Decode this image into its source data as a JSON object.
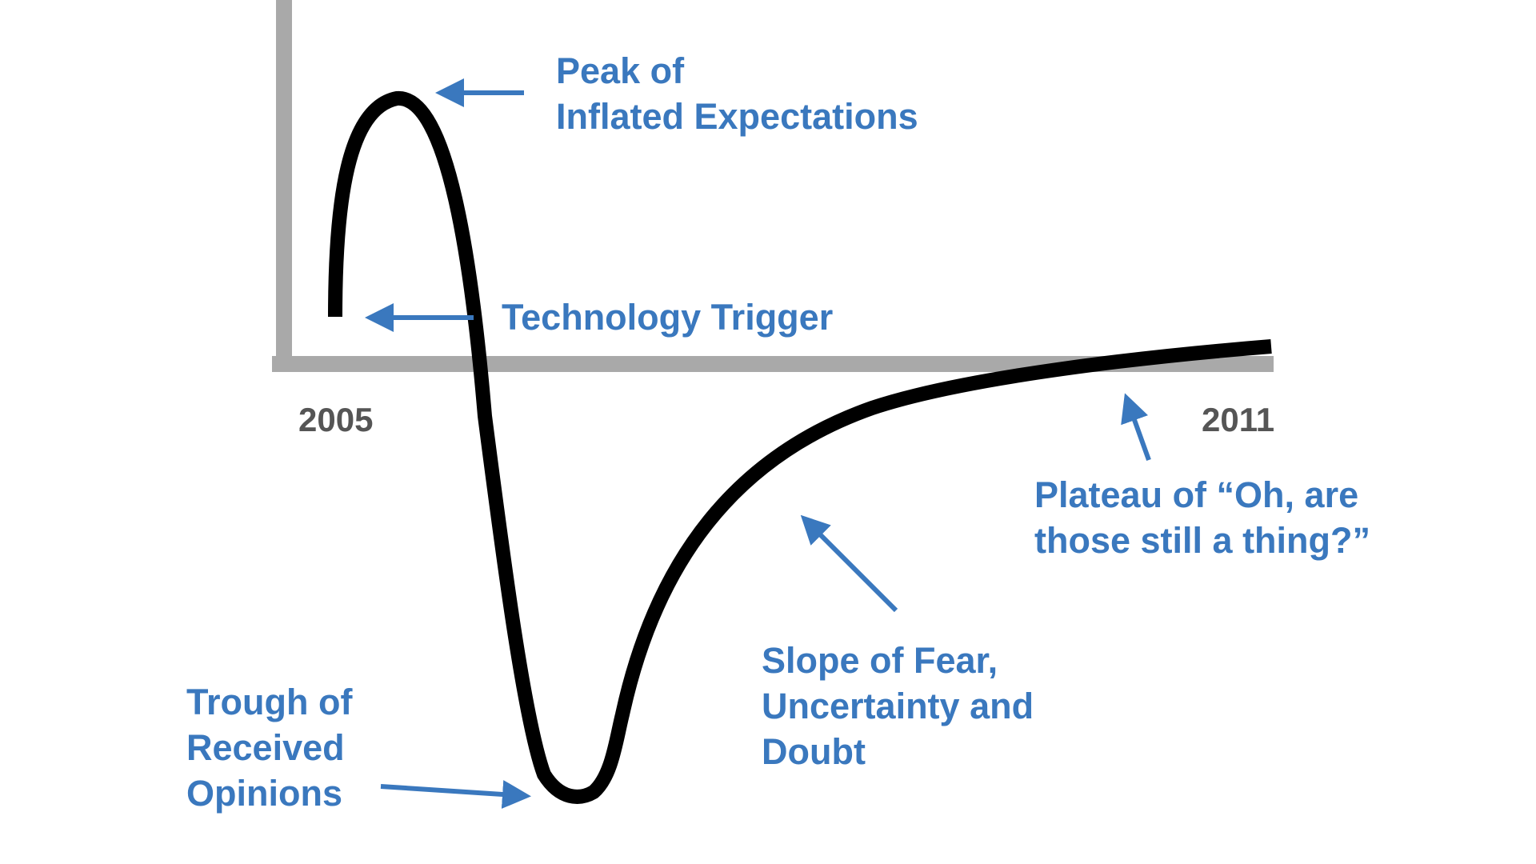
{
  "colors": {
    "background": "#ffffff",
    "axis": "#a9a9a9",
    "curve": "#000000",
    "annotation": "#3a78be",
    "year_label": "#555555"
  },
  "axis_labels": {
    "start": "2005",
    "end": "2011"
  },
  "annotations": {
    "peak": {
      "lines": [
        "Peak of",
        "Inflated Expectations"
      ]
    },
    "trigger": {
      "lines": [
        "Technology Trigger"
      ]
    },
    "trough": {
      "lines": [
        "Trough of",
        "Received",
        "Opinions"
      ]
    },
    "slope": {
      "lines": [
        "Slope of Fear,",
        "Uncertainty and",
        "Doubt"
      ]
    },
    "plateau": {
      "lines": [
        "Plateau of “Oh, are",
        "those still a thing?”"
      ]
    }
  },
  "icons": {
    "arrow": "arrow-icon"
  }
}
